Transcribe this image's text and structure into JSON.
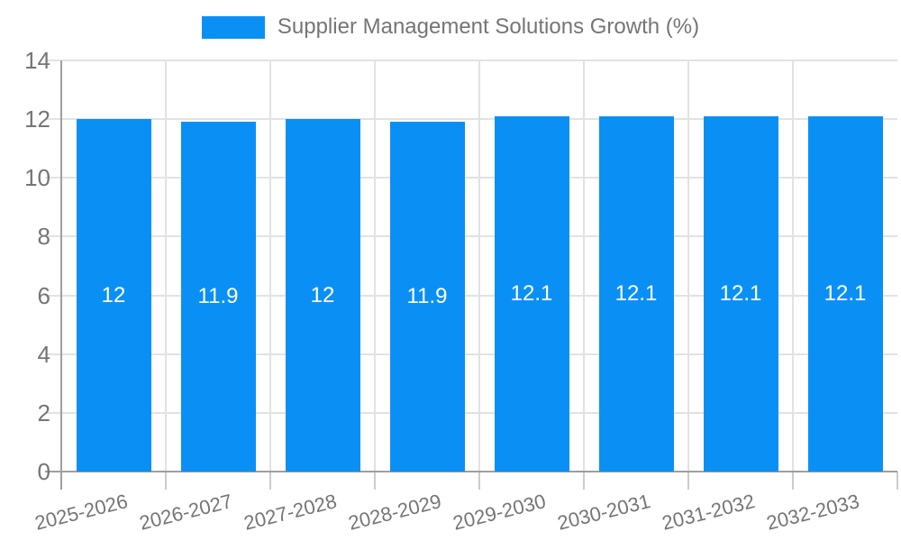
{
  "chart_data": {
    "type": "bar",
    "title": "Supplier Management Solutions Growth (%)",
    "categories": [
      "2025-2026",
      "2026-2027",
      "2027-2028",
      "2028-2029",
      "2029-2030",
      "2030-2031",
      "2031-2032",
      "2032-2033"
    ],
    "values": [
      12,
      11.9,
      12,
      11.9,
      12.1,
      12.1,
      12.1,
      12.1
    ],
    "bar_labels": [
      "12",
      "11.9",
      "12",
      "11.9",
      "12.1",
      "12.1",
      "12.1",
      "12.1"
    ],
    "xlabel": "",
    "ylabel": "",
    "ylim": [
      0,
      14
    ],
    "yticks": [
      0,
      2,
      4,
      6,
      8,
      10,
      12,
      14
    ],
    "ytick_labels": [
      "0",
      "2",
      "4",
      "6",
      "8",
      "10",
      "12",
      "14"
    ],
    "grid": true,
    "legend": {
      "position": "top",
      "label": "Supplier Management Solutions Growth (%)"
    },
    "colors": {
      "bar": "#0a90f5",
      "grid": "#e2e2e2",
      "axis": "#9e9e9e",
      "tick": "#cccccc",
      "tick_text": "#757575",
      "bar_label_text": "#ffffff",
      "background": "#ffffff"
    }
  }
}
